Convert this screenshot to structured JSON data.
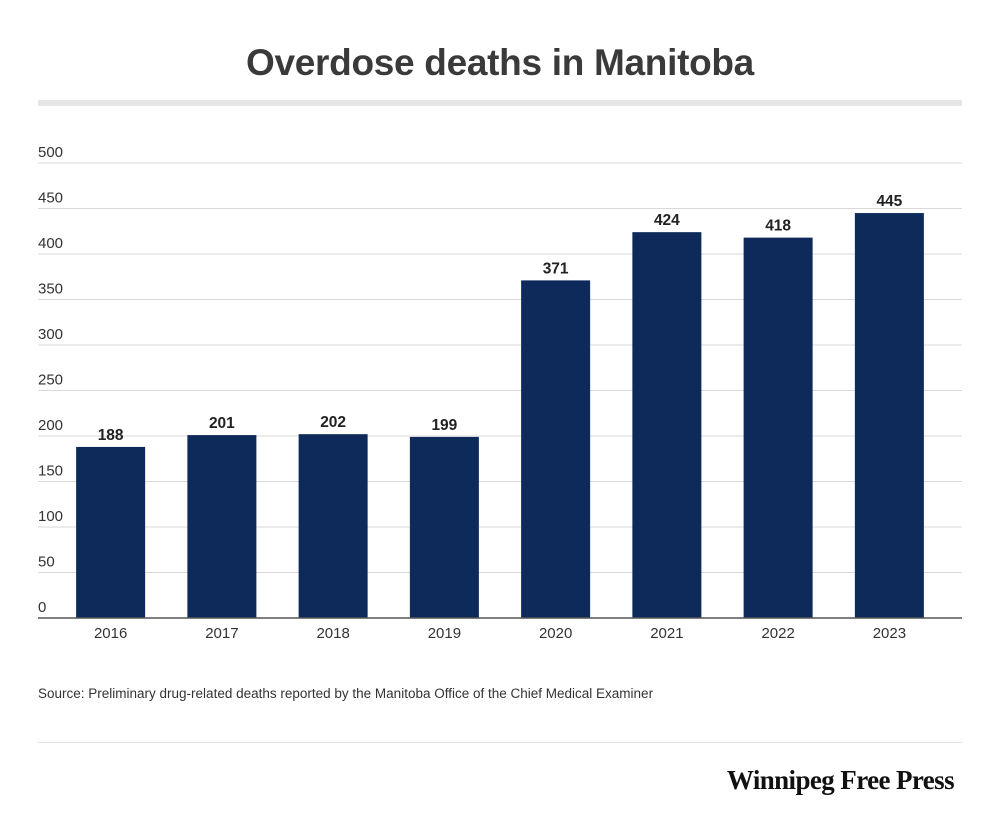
{
  "chart_data": {
    "type": "bar",
    "title": "Overdose deaths in Manitoba",
    "categories": [
      "2016",
      "2017",
      "2018",
      "2019",
      "2020",
      "2021",
      "2022",
      "2023"
    ],
    "values": [
      188,
      201,
      202,
      199,
      371,
      424,
      418,
      445
    ],
    "ylim": [
      0,
      500
    ],
    "yticks": [
      0,
      50,
      100,
      150,
      200,
      250,
      300,
      350,
      400,
      450,
      500
    ],
    "grid": true,
    "data_labels": true,
    "bar_color": "#0d2a5a",
    "xlabel": "",
    "ylabel": ""
  },
  "source": "Source: Preliminary drug-related deaths reported by the Manitoba Office of the Chief Medical Examiner",
  "logo": "Winnipeg Free Press"
}
